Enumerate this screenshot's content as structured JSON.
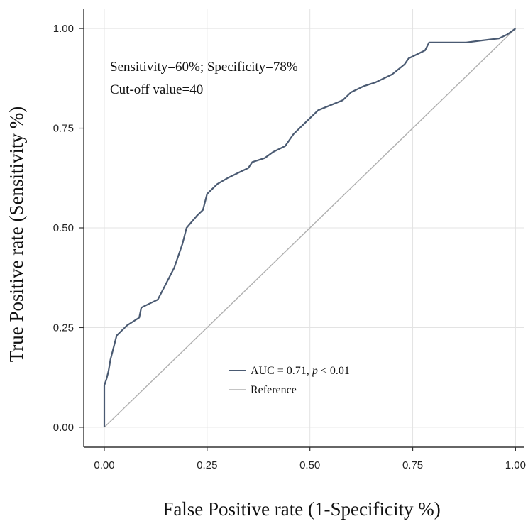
{
  "chart_data": {
    "type": "line",
    "xlabel": "False Positive rate (1-Specificity %)",
    "ylabel": "True Positive rate (Sensitivity %)",
    "xlim": [
      -0.05,
      1.02
    ],
    "ylim": [
      -0.05,
      1.05
    ],
    "xticks": [
      "0.00",
      "0.25",
      "0.50",
      "0.75",
      "1.00"
    ],
    "yticks": [
      "0.00",
      "0.25",
      "0.50",
      "0.75",
      "1.00"
    ],
    "grid": true,
    "legend_position": "lower-right",
    "annotations": [
      "Sensitivity=60%;  Specificity=78%",
      "Cut-off value=40"
    ],
    "series": [
      {
        "name_prefix": "AUC = 0.71, ",
        "name_italic": "p",
        "name_suffix": " < 0.01",
        "color": "#4a5a72",
        "x": [
          0,
          0,
          0.005,
          0.01,
          0.015,
          0.02,
          0.03,
          0.04,
          0.055,
          0.07,
          0.085,
          0.09,
          0.11,
          0.13,
          0.15,
          0.17,
          0.19,
          0.2,
          0.225,
          0.24,
          0.25,
          0.275,
          0.3,
          0.33,
          0.35,
          0.36,
          0.39,
          0.41,
          0.44,
          0.46,
          0.49,
          0.52,
          0.58,
          0.6,
          0.63,
          0.66,
          0.7,
          0.73,
          0.74,
          0.78,
          0.79,
          0.88,
          0.92,
          0.96,
          0.98,
          1.0
        ],
        "y": [
          0,
          0.105,
          0.12,
          0.14,
          0.17,
          0.19,
          0.23,
          0.24,
          0.255,
          0.265,
          0.275,
          0.3,
          0.31,
          0.32,
          0.36,
          0.4,
          0.46,
          0.5,
          0.53,
          0.545,
          0.585,
          0.61,
          0.625,
          0.64,
          0.65,
          0.665,
          0.675,
          0.69,
          0.705,
          0.735,
          0.765,
          0.795,
          0.82,
          0.84,
          0.855,
          0.865,
          0.885,
          0.91,
          0.925,
          0.945,
          0.965,
          0.965,
          0.97,
          0.975,
          0.985,
          1.0
        ]
      },
      {
        "name": "Reference",
        "color": "#b0b0b0",
        "x": [
          0,
          1
        ],
        "y": [
          0,
          1
        ]
      }
    ]
  }
}
